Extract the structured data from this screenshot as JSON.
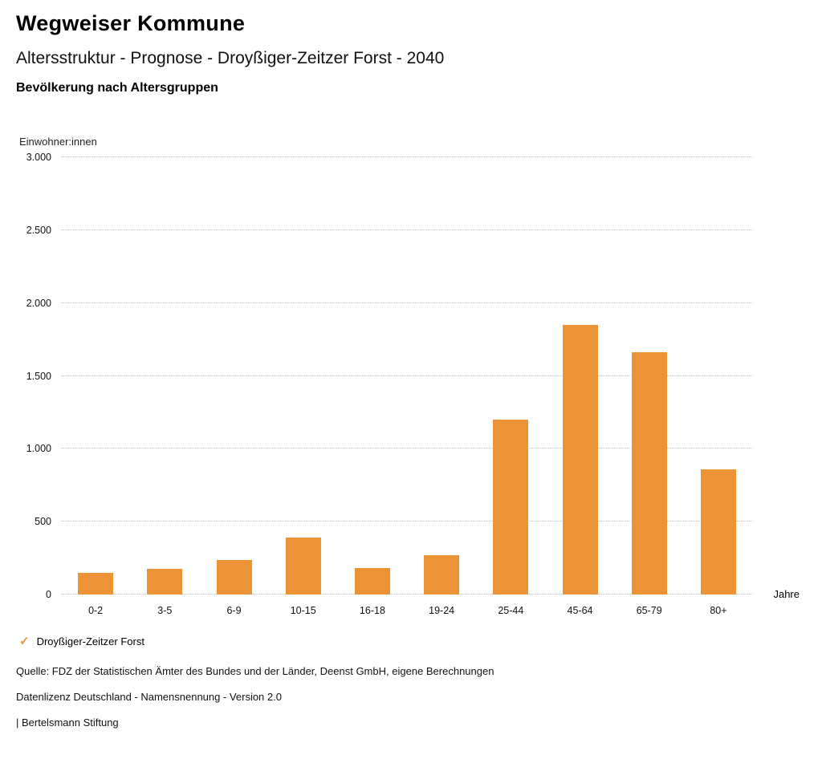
{
  "header": {
    "title": "Wegweiser Kommune",
    "subtitle": "Altersstruktur - Prognose - Droyßiger-Zeitzer Forst - 2040",
    "chart_heading": "Bevölkerung nach Altersgruppen"
  },
  "chart_data": {
    "type": "bar",
    "title": "Bevölkerung nach Altersgruppen",
    "ylabel": "Einwohner:innen",
    "xlabel": "Jahre",
    "categories": [
      "0-2",
      "3-5",
      "6-9",
      "10-15",
      "16-18",
      "19-24",
      "25-44",
      "45-64",
      "65-79",
      "80+"
    ],
    "values": [
      150,
      175,
      235,
      390,
      180,
      270,
      1200,
      1850,
      1660,
      860
    ],
    "ylim": [
      0,
      3000
    ],
    "yticks": [
      0,
      500,
      1000,
      1500,
      2000,
      2500,
      3000
    ],
    "ytick_labels": [
      "0",
      "500",
      "1.000",
      "1.500",
      "2.000",
      "2.500",
      "3.000"
    ],
    "bar_color": "#EC9435",
    "grid": "horizontal dotted",
    "legend_position": "bottom",
    "legend": [
      {
        "label": "Droyßiger-Zeitzer Forst",
        "marker": "check",
        "color": "#EC9435"
      }
    ]
  },
  "footer": {
    "source": "Quelle: FDZ der Statistischen Ämter des Bundes und der Länder, Deenst GmbH, eigene Berechnungen",
    "license": "Datenlizenz Deutschland - Namensnennung - Version 2.0",
    "attribution": "| Bertelsmann Stiftung"
  }
}
